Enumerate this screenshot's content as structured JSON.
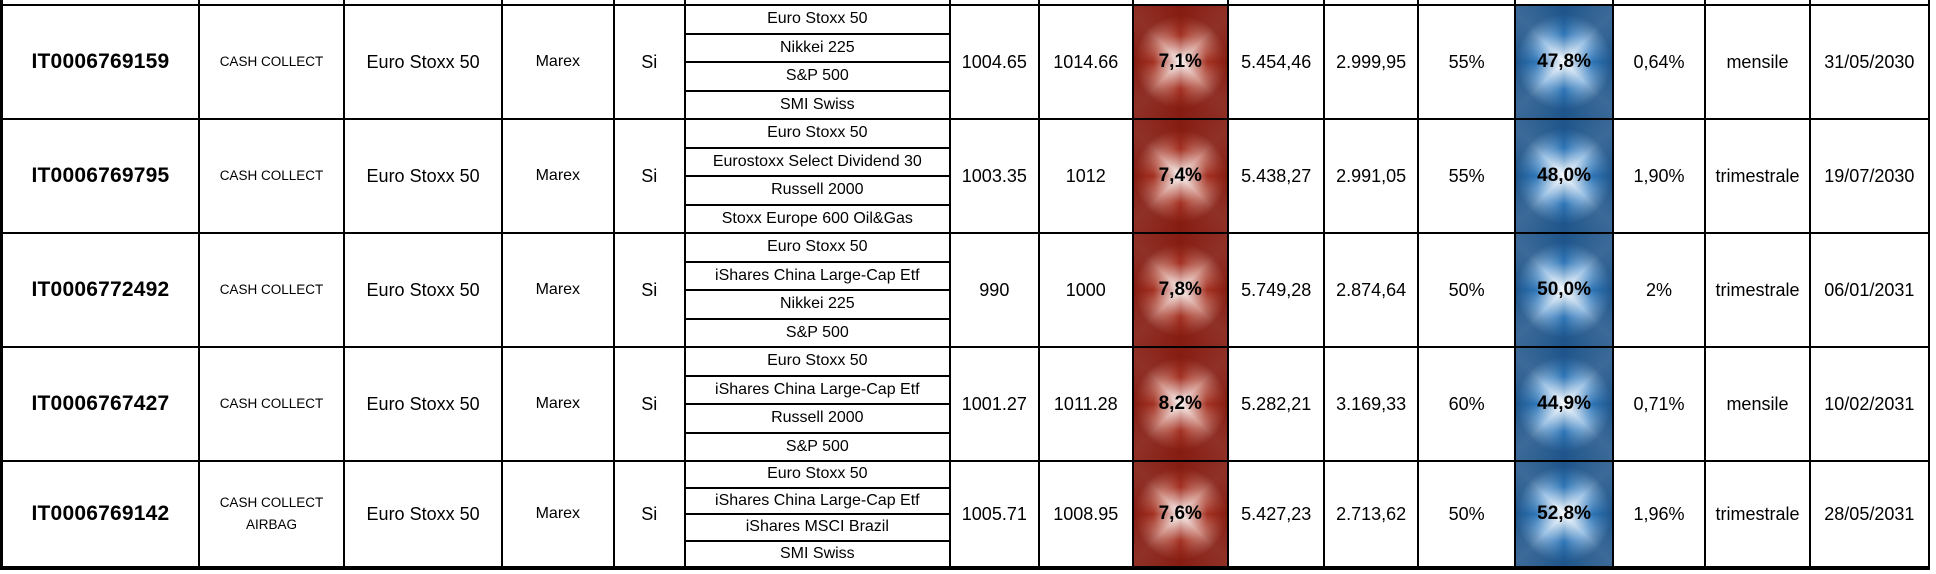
{
  "table": {
    "colors": {
      "coupon_cell_dark": "#a33122",
      "coupon_cell_light": "#f6e3e0",
      "buffer_cell_dark": "#2e75b6",
      "buffer_cell_light": "#edf5fc",
      "grid_line": "#000000"
    },
    "rows": [
      {
        "isin": "IT0006769159",
        "type": "CASH COLLECT",
        "underlying": "Euro Stoxx 50",
        "issuer": "Marex",
        "quanto": "Si",
        "basket": [
          "Euro Stoxx 50",
          "Nikkei 225",
          "S&P 500",
          "SMI Swiss"
        ],
        "bid": "1004.65",
        "ask": "1014.66",
        "coupon_pct": "7,1%",
        "reference": "5.454,46",
        "barrier_value": "2.999,95",
        "barrier_pct": "55%",
        "buffer_pct": "47,8%",
        "premium_pct": "0,64%",
        "frequency": "mensile",
        "maturity": "31/05/2030"
      },
      {
        "isin": "IT0006769795",
        "type": "CASH COLLECT",
        "underlying": "Euro Stoxx 50",
        "issuer": "Marex",
        "quanto": "Si",
        "basket": [
          "Euro Stoxx 50",
          "Eurostoxx Select Dividend 30",
          "Russell 2000",
          "Stoxx Europe 600 Oil&Gas"
        ],
        "bid": "1003.35",
        "ask": "1012",
        "coupon_pct": "7,4%",
        "reference": "5.438,27",
        "barrier_value": "2.991,05",
        "barrier_pct": "55%",
        "buffer_pct": "48,0%",
        "premium_pct": "1,90%",
        "frequency": "trimestrale",
        "maturity": "19/07/2030"
      },
      {
        "isin": "IT0006772492",
        "type": "CASH COLLECT",
        "underlying": "Euro Stoxx 50",
        "issuer": "Marex",
        "quanto": "Si",
        "basket": [
          "Euro Stoxx 50",
          "iShares China Large-Cap Etf",
          "Nikkei 225",
          "S&P 500"
        ],
        "bid": "990",
        "ask": "1000",
        "coupon_pct": "7,8%",
        "reference": "5.749,28",
        "barrier_value": "2.874,64",
        "barrier_pct": "50%",
        "buffer_pct": "50,0%",
        "premium_pct": "2%",
        "frequency": "trimestrale",
        "maturity": "06/01/2031"
      },
      {
        "isin": "IT0006767427",
        "type": "CASH COLLECT",
        "underlying": "Euro Stoxx 50",
        "issuer": "Marex",
        "quanto": "Si",
        "basket": [
          "Euro Stoxx 50",
          "iShares China Large-Cap Etf",
          "Russell 2000",
          "S&P 500"
        ],
        "bid": "1001.27",
        "ask": "1011.28",
        "coupon_pct": "8,2%",
        "reference": "5.282,21",
        "barrier_value": "3.169,33",
        "barrier_pct": "60%",
        "buffer_pct": "44,9%",
        "premium_pct": "0,71%",
        "frequency": "mensile",
        "maturity": "10/02/2031"
      },
      {
        "isin": "IT0006769142",
        "type": "CASH COLLECT AIRBAG",
        "underlying": "Euro Stoxx 50",
        "issuer": "Marex",
        "quanto": "Si",
        "basket": [
          "Euro Stoxx 50",
          "iShares China Large-Cap Etf",
          "iShares MSCI Brazil",
          "SMI Swiss"
        ],
        "bid": "1005.71",
        "ask": "1008.95",
        "coupon_pct": "7,6%",
        "reference": "5.427,23",
        "barrier_value": "2.713,62",
        "barrier_pct": "50%",
        "buffer_pct": "52,8%",
        "premium_pct": "1,96%",
        "frequency": "trimestrale",
        "maturity": "28/05/2031"
      }
    ]
  }
}
